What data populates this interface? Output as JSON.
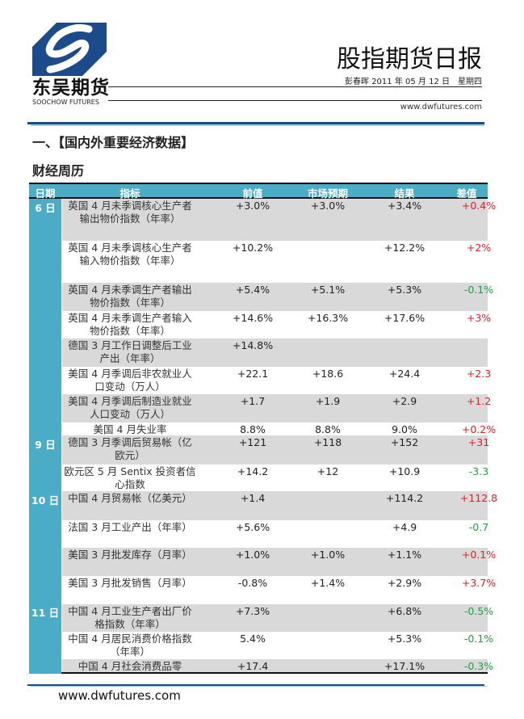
{
  "header": {
    "logo_cn": "东吴期货",
    "logo_en": "SOOCHOW FUTURES",
    "title": "股指期货日报",
    "byline": "彭春晖 2011 年 05 月 12 日　星期四",
    "url": "www.dwfutures.com"
  },
  "section_title": "一、【国内外重要经济数据】",
  "subsection_title": "财经周历",
  "colors": {
    "header_bg": "#4bacc6",
    "positive": "#e02020",
    "negative": "#1fa040",
    "band": "#d9d9d9",
    "brand": "#1c4b8c"
  },
  "table": {
    "headers": [
      "日期",
      "指标",
      "前值",
      "市场预期",
      "结果",
      "差值"
    ],
    "days": [
      "6 日",
      "9 日",
      "10 日",
      "11 日"
    ],
    "rows": [
      {
        "indicator": "英国 4 月未季调核心生产者输出物价指数（年率）",
        "prev": "+3.0%",
        "forecast": "+3.0%",
        "actual": "+3.4%",
        "diff": "+0.4%"
      },
      {
        "indicator": "英国 4 月未季调核心生产者输入物价指数（年率）",
        "prev": "+10.2%",
        "forecast": "",
        "actual": "+12.2%",
        "diff": "+2%"
      },
      {
        "indicator": "英国 4 月未季调生产者输出物价指数（年率）",
        "prev": "+5.4%",
        "forecast": "+5.1%",
        "actual": "+5.3%",
        "diff": "-0.1%"
      },
      {
        "indicator": "英国 4 月未季调生产者输入物价指数（年率）",
        "prev": "+14.6%",
        "forecast": "+16.3%",
        "actual": "+17.6%",
        "diff": "+3%"
      },
      {
        "indicator": "德国 3 月工作日调整后工业产出（年率）",
        "prev": "+14.8%",
        "forecast": "",
        "actual": "",
        "diff": ""
      },
      {
        "indicator": "美国 4 月季调后非农就业人口变动（万人）",
        "prev": "+22.1",
        "forecast": "+18.6",
        "actual": "+24.4",
        "diff": "+2.3"
      },
      {
        "indicator": "美国 4 月季调后制造业就业人口变动（万人）",
        "prev": "+1.7",
        "forecast": "+1.9",
        "actual": "+2.9",
        "diff": "+1.2"
      },
      {
        "indicator": "美国 4 月失业率",
        "prev": "8.8%",
        "forecast": "8.8%",
        "actual": "9.0%",
        "diff": "+0.2%"
      },
      {
        "indicator": "德国 3 月季调后贸易帐（亿欧元）",
        "prev": "+121",
        "forecast": "+118",
        "actual": "+152",
        "diff": "+31"
      },
      {
        "indicator": "欧元区 5 月 Sentix 投资者信心指数",
        "prev": "+14.2",
        "forecast": "+12",
        "actual": "+10.9",
        "diff": "-3.3"
      },
      {
        "indicator": "中国 4 月贸易帐（亿美元）",
        "prev": "+1.4",
        "forecast": "",
        "actual": "+114.2",
        "diff": "+112.8"
      },
      {
        "indicator": "法国 3 月工业产出（年率）",
        "prev": "+5.6%",
        "forecast": "",
        "actual": "+4.9",
        "diff": "-0.7"
      },
      {
        "indicator": "美国 3 月批发库存（月率）",
        "prev": "+1.0%",
        "forecast": "+1.0%",
        "actual": "+1.1%",
        "diff": "+0.1%"
      },
      {
        "indicator": "美国 3 月批发销售（月率）",
        "prev": "-0.8%",
        "forecast": "+1.4%",
        "actual": "+2.9%",
        "diff": "+3.7%"
      },
      {
        "indicator": "中国 4 月工业生产者出厂价格指数（年率）",
        "prev": "+7.3%",
        "forecast": "",
        "actual": "+6.8%",
        "diff": "-0.5%"
      },
      {
        "indicator": "中国 4 月居民消费价格指数（年率）",
        "prev": "5.4%",
        "forecast": "",
        "actual": "+5.3%",
        "diff": "-0.1%"
      },
      {
        "indicator": "中国 4 月社会消费品零",
        "prev": "+17.4",
        "forecast": "",
        "actual": "+17.1%",
        "diff": "-0.3%"
      }
    ]
  },
  "footer": {
    "url": "www.dwfutures.com"
  }
}
